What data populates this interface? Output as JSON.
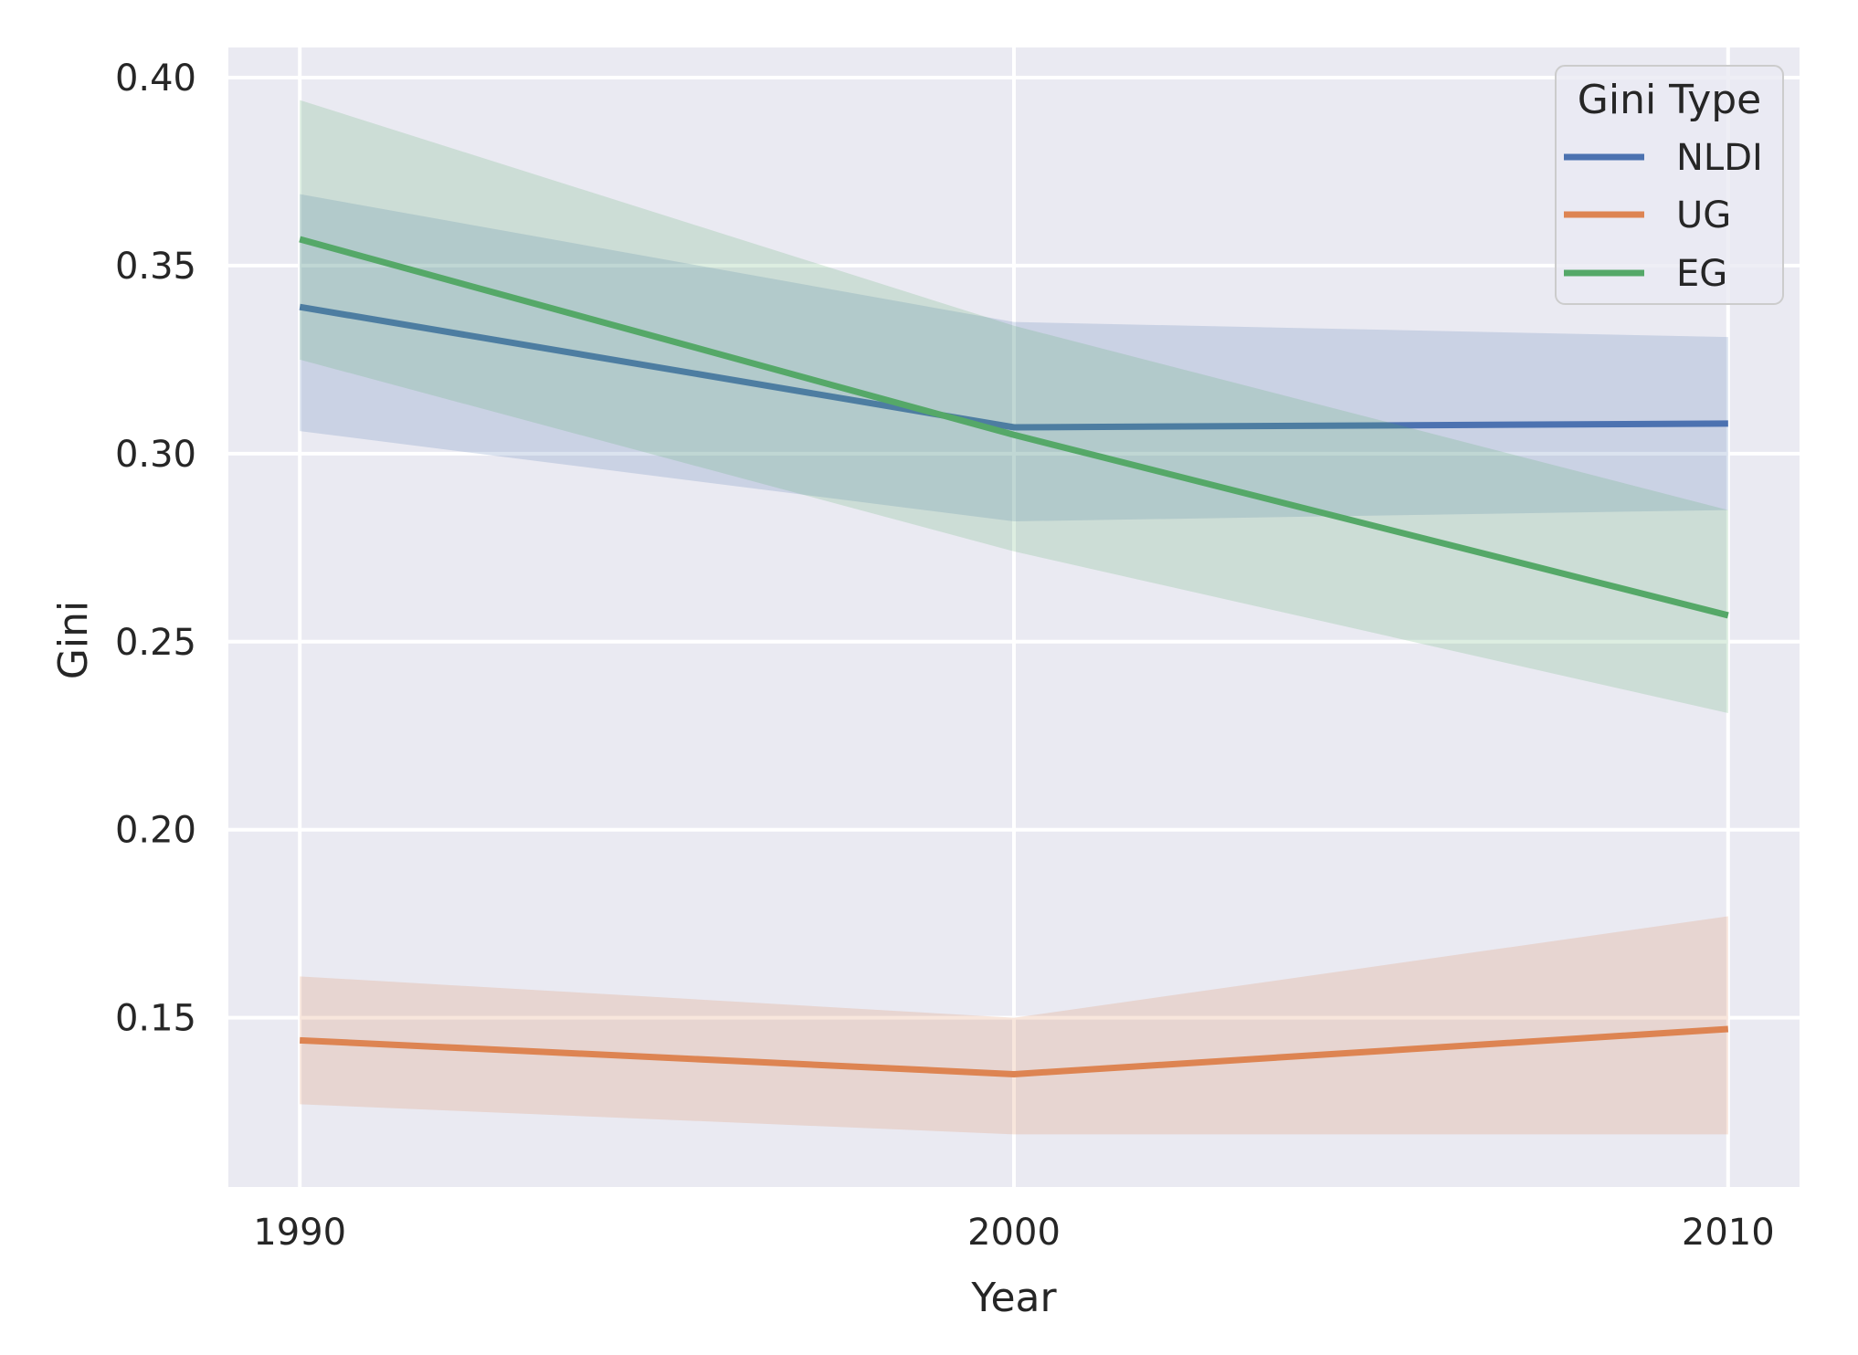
{
  "figure": {
    "background": "#ffffff",
    "plot_background": "#eaeaf2",
    "grid_color": "#ffffff",
    "text_color": "#262626",
    "legend_border_color": "#cccccc"
  },
  "chart_data": {
    "type": "line",
    "title": "",
    "xlabel": "Year",
    "ylabel": "Gini",
    "x": [
      1990,
      2000,
      2010
    ],
    "xtick_values": [
      1990,
      2000,
      2010
    ],
    "xtick_labels": [
      "1990",
      "2000",
      "2010"
    ],
    "ytick_values": [
      0.15,
      0.2,
      0.25,
      0.3,
      0.35,
      0.4
    ],
    "ytick_labels": [
      "0.15",
      "0.20",
      "0.25",
      "0.30",
      "0.35",
      "0.40"
    ],
    "xlim": [
      1989,
      2011
    ],
    "ylim": [
      0.105,
      0.408
    ],
    "grid": true,
    "band_opacity": 0.2,
    "legend": {
      "title": "Gini Type",
      "position": "upper right",
      "entries": [
        "NLDI",
        "UG",
        "EG"
      ]
    },
    "series": [
      {
        "name": "NLDI",
        "color": "#4c72b0",
        "values": [
          0.339,
          0.307,
          0.308
        ],
        "band_upper": [
          0.369,
          0.335,
          0.331
        ],
        "band_lower": [
          0.306,
          0.282,
          0.285
        ]
      },
      {
        "name": "UG",
        "color": "#dd8452",
        "values": [
          0.144,
          0.135,
          0.147
        ],
        "band_upper": [
          0.161,
          0.15,
          0.177
        ],
        "band_lower": [
          0.127,
          0.119,
          0.119
        ]
      },
      {
        "name": "EG",
        "color": "#55a868",
        "values": [
          0.357,
          0.305,
          0.257
        ],
        "band_upper": [
          0.394,
          0.334,
          0.285
        ],
        "band_lower": [
          0.325,
          0.274,
          0.231
        ]
      }
    ]
  }
}
